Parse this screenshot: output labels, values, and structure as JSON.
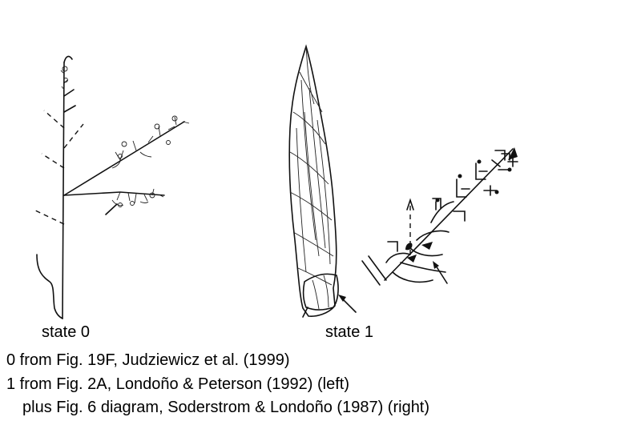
{
  "states": [
    {
      "label": "state 0"
    },
    {
      "label": "state 1"
    }
  ],
  "captions": [
    "0 from Fig. 19F, Judziewicz et al. (1999)",
    "1 from Fig. 2A, Londoño & Peterson (1992) (left)",
    "plus Fig. 6 diagram, Soderstrom & Londoño (1987) (right)"
  ]
}
